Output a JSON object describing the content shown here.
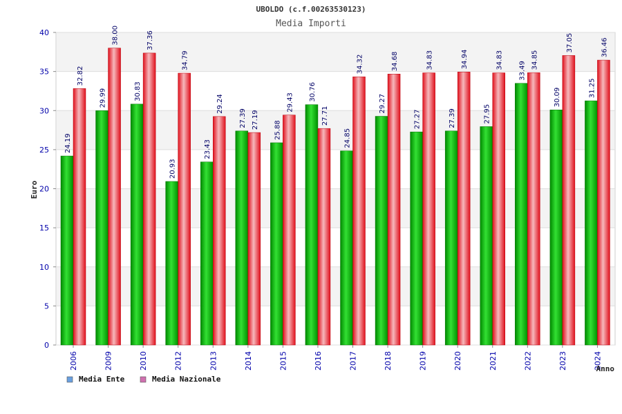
{
  "chart_data": {
    "type": "bar",
    "title": "UBOLDO (c.f.00263530123)",
    "subtitle": "Media Importi",
    "xlabel": "Anno",
    "ylabel": "Euro",
    "ylim": [
      0,
      40
    ],
    "yticks": [
      0,
      5,
      10,
      15,
      20,
      25,
      30,
      35,
      40
    ],
    "grid": true,
    "legend_position": "bottom-left",
    "categories": [
      "2006",
      "2009",
      "2010",
      "2012",
      "2013",
      "2014",
      "2015",
      "2016",
      "2017",
      "2018",
      "2019",
      "2020",
      "2021",
      "2022",
      "2023",
      "2024"
    ],
    "series": [
      {
        "name": "Media Ente",
        "color": "#00b000",
        "legend_color": "#6aa0e0",
        "values": [
          24.19,
          29.99,
          30.83,
          20.93,
          23.43,
          27.39,
          25.88,
          30.76,
          24.85,
          29.27,
          27.27,
          27.39,
          27.95,
          33.49,
          30.09,
          31.25
        ],
        "labels": [
          "24.19",
          "29.99",
          "30.83",
          "20.93",
          "23.43",
          "27.39",
          "25.88",
          "30.76",
          "24.85",
          "29.27",
          "27.27",
          "27.39",
          "27.95",
          "33.49",
          "30.09",
          "31.25"
        ]
      },
      {
        "name": "Media Nazionale",
        "color": "#e8202a",
        "legend_color": "#d070b0",
        "values": [
          32.82,
          38.0,
          37.36,
          34.79,
          29.24,
          27.19,
          29.43,
          27.71,
          34.32,
          34.68,
          34.83,
          34.94,
          34.83,
          34.85,
          37.05,
          36.46
        ],
        "labels": [
          "32.82",
          "38.00",
          "37.36",
          "34.79",
          "29.24",
          "27.19",
          "29.43",
          "27.71",
          "34.32",
          "34.68",
          "34.83",
          "34.94",
          "34.83",
          "34.85",
          "37.05",
          "36.46"
        ]
      }
    ]
  }
}
